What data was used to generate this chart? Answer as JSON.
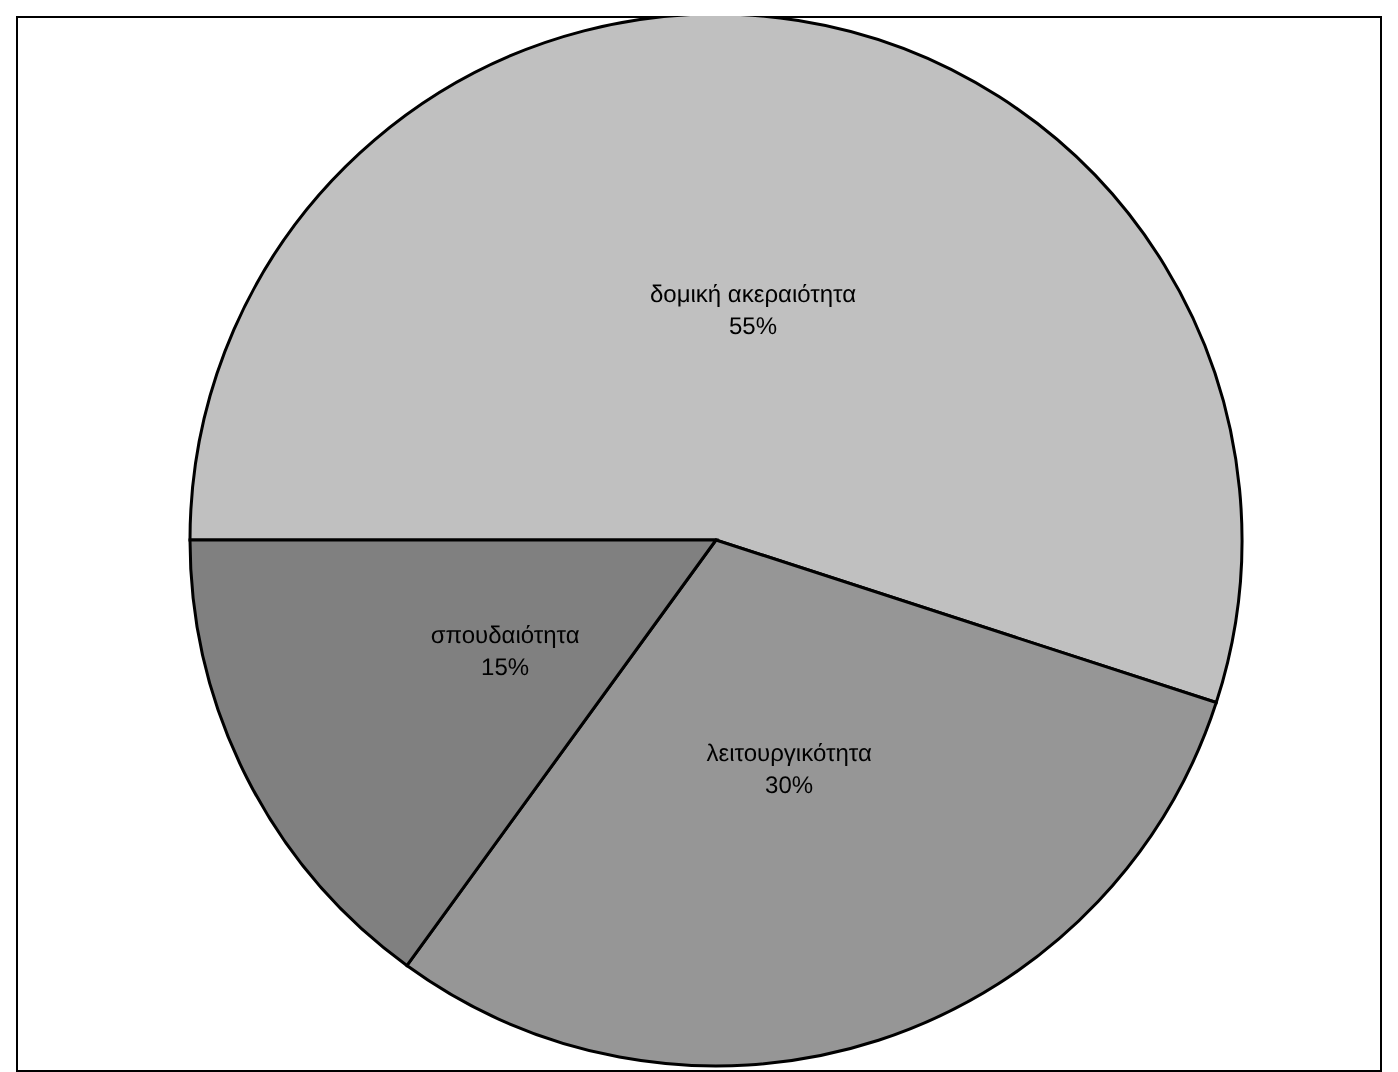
{
  "chart_data": {
    "type": "pie",
    "categories": [
      "δομική ακεραιότητα",
      "λειτουργικότητα",
      "σπουδαιότητα"
    ],
    "values": [
      55,
      30,
      15
    ],
    "value_labels": [
      "55%",
      "30%",
      "15%"
    ],
    "colors": [
      "#c0c0c0",
      "#969696",
      "#808080"
    ]
  }
}
